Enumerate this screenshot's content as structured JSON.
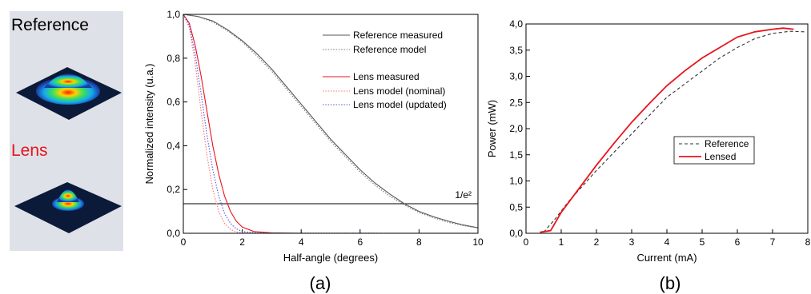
{
  "inset": {
    "reference_label": "Reference",
    "lens_label": "Lens",
    "reference_color": "#000000",
    "lens_color": "#e8141c",
    "background": "#dfe1e8"
  },
  "panel_labels": {
    "a": "(a)",
    "b": "(b)"
  },
  "chart_data": [
    {
      "type": "line",
      "xlabel": "Half-angle (degrees)",
      "ylabel": "Normalized intensity (u.a.)",
      "xlim": [
        0,
        10
      ],
      "ylim": [
        0,
        1.0
      ],
      "x_ticks": [
        "0",
        "2",
        "4",
        "6",
        "8",
        "10"
      ],
      "y_ticks": [
        "0,0",
        "0,2",
        "0,4",
        "0,6",
        "0,8",
        "1,0"
      ],
      "legend_position": "top-right",
      "annotation": {
        "text": "1/e²",
        "y": 0.135
      },
      "series": [
        {
          "name": "Reference measured",
          "color": "#555555",
          "dash": "solid",
          "x": [
            0,
            0.5,
            1,
            1.5,
            2,
            2.5,
            3,
            3.5,
            4,
            4.5,
            5,
            5.5,
            6,
            6.5,
            7,
            7.5,
            8,
            8.5,
            9,
            9.5,
            10
          ],
          "y": [
            1.0,
            0.99,
            0.97,
            0.93,
            0.88,
            0.82,
            0.75,
            0.67,
            0.59,
            0.51,
            0.43,
            0.36,
            0.29,
            0.23,
            0.18,
            0.135,
            0.1,
            0.075,
            0.055,
            0.038,
            0.025
          ]
        },
        {
          "name": "Reference model",
          "color": "#777777",
          "dash": "dotted",
          "x": [
            0,
            0.5,
            1,
            1.5,
            2,
            2.5,
            3,
            3.5,
            4,
            4.5,
            5,
            5.5,
            6,
            6.5,
            7,
            7.5,
            8,
            8.5,
            9,
            9.5,
            10
          ],
          "y": [
            1.0,
            0.99,
            0.965,
            0.925,
            0.875,
            0.81,
            0.74,
            0.66,
            0.58,
            0.5,
            0.42,
            0.35,
            0.28,
            0.22,
            0.17,
            0.13,
            0.095,
            0.07,
            0.05,
            0.035,
            0.024
          ]
        },
        {
          "name": "Lens measured",
          "color": "#e8141c",
          "dash": "solid",
          "x": [
            0,
            0.2,
            0.4,
            0.6,
            0.8,
            1.0,
            1.2,
            1.4,
            1.6,
            1.8,
            2.0,
            2.4,
            3.0,
            4.0,
            10
          ],
          "y": [
            1.0,
            0.96,
            0.86,
            0.72,
            0.56,
            0.4,
            0.27,
            0.17,
            0.1,
            0.055,
            0.028,
            0.008,
            0.002,
            0,
            0
          ]
        },
        {
          "name": "Lens model (nominal)",
          "color": "#ff7070",
          "dash": "dotted",
          "x": [
            0,
            0.2,
            0.4,
            0.6,
            0.8,
            1.0,
            1.2,
            1.4,
            1.6,
            1.8,
            2.0,
            2.5,
            10
          ],
          "y": [
            1.0,
            0.94,
            0.78,
            0.56,
            0.36,
            0.2,
            0.1,
            0.045,
            0.018,
            0.006,
            0.002,
            0,
            0
          ]
        },
        {
          "name": "Lens model (updated)",
          "color": "#4a5adc",
          "dash": "dotted",
          "x": [
            0,
            0.2,
            0.4,
            0.6,
            0.8,
            1.0,
            1.2,
            1.4,
            1.6,
            1.8,
            2.0,
            2.5,
            10
          ],
          "y": [
            1.0,
            0.95,
            0.82,
            0.64,
            0.45,
            0.29,
            0.17,
            0.09,
            0.045,
            0.02,
            0.008,
            0.001,
            0
          ]
        }
      ]
    },
    {
      "type": "line",
      "xlabel": "Current (mA)",
      "ylabel": "Power (mW)",
      "xlim": [
        0,
        8
      ],
      "ylim": [
        0,
        4.0
      ],
      "x_ticks": [
        "0",
        "1",
        "2",
        "3",
        "4",
        "5",
        "6",
        "7",
        "8"
      ],
      "y_ticks": [
        "0,0",
        "0,5",
        "1,0",
        "1,5",
        "2,0",
        "2,5",
        "3,0",
        "3,5",
        "4,0"
      ],
      "legend_position": "center",
      "series": [
        {
          "name": "Reference",
          "color": "#333333",
          "dash": "dashed",
          "x": [
            0.5,
            0.8,
            1.2,
            1.6,
            2,
            2.5,
            3,
            3.5,
            4,
            4.5,
            5,
            5.5,
            6,
            6.5,
            7,
            7.5,
            7.9
          ],
          "y": [
            0.02,
            0.25,
            0.6,
            0.9,
            1.2,
            1.55,
            1.9,
            2.25,
            2.6,
            2.85,
            3.1,
            3.35,
            3.55,
            3.72,
            3.82,
            3.86,
            3.85
          ]
        },
        {
          "name": "Lensed",
          "color": "#e8141c",
          "dash": "solid",
          "x": [
            0.4,
            0.7,
            1,
            1.5,
            2,
            2.5,
            3,
            3.5,
            4,
            4.5,
            5,
            5.5,
            6,
            6.5,
            7,
            7.3,
            7.6
          ],
          "y": [
            0.02,
            0.05,
            0.4,
            0.85,
            1.3,
            1.72,
            2.12,
            2.48,
            2.82,
            3.1,
            3.35,
            3.55,
            3.75,
            3.85,
            3.9,
            3.92,
            3.9
          ]
        }
      ]
    }
  ]
}
